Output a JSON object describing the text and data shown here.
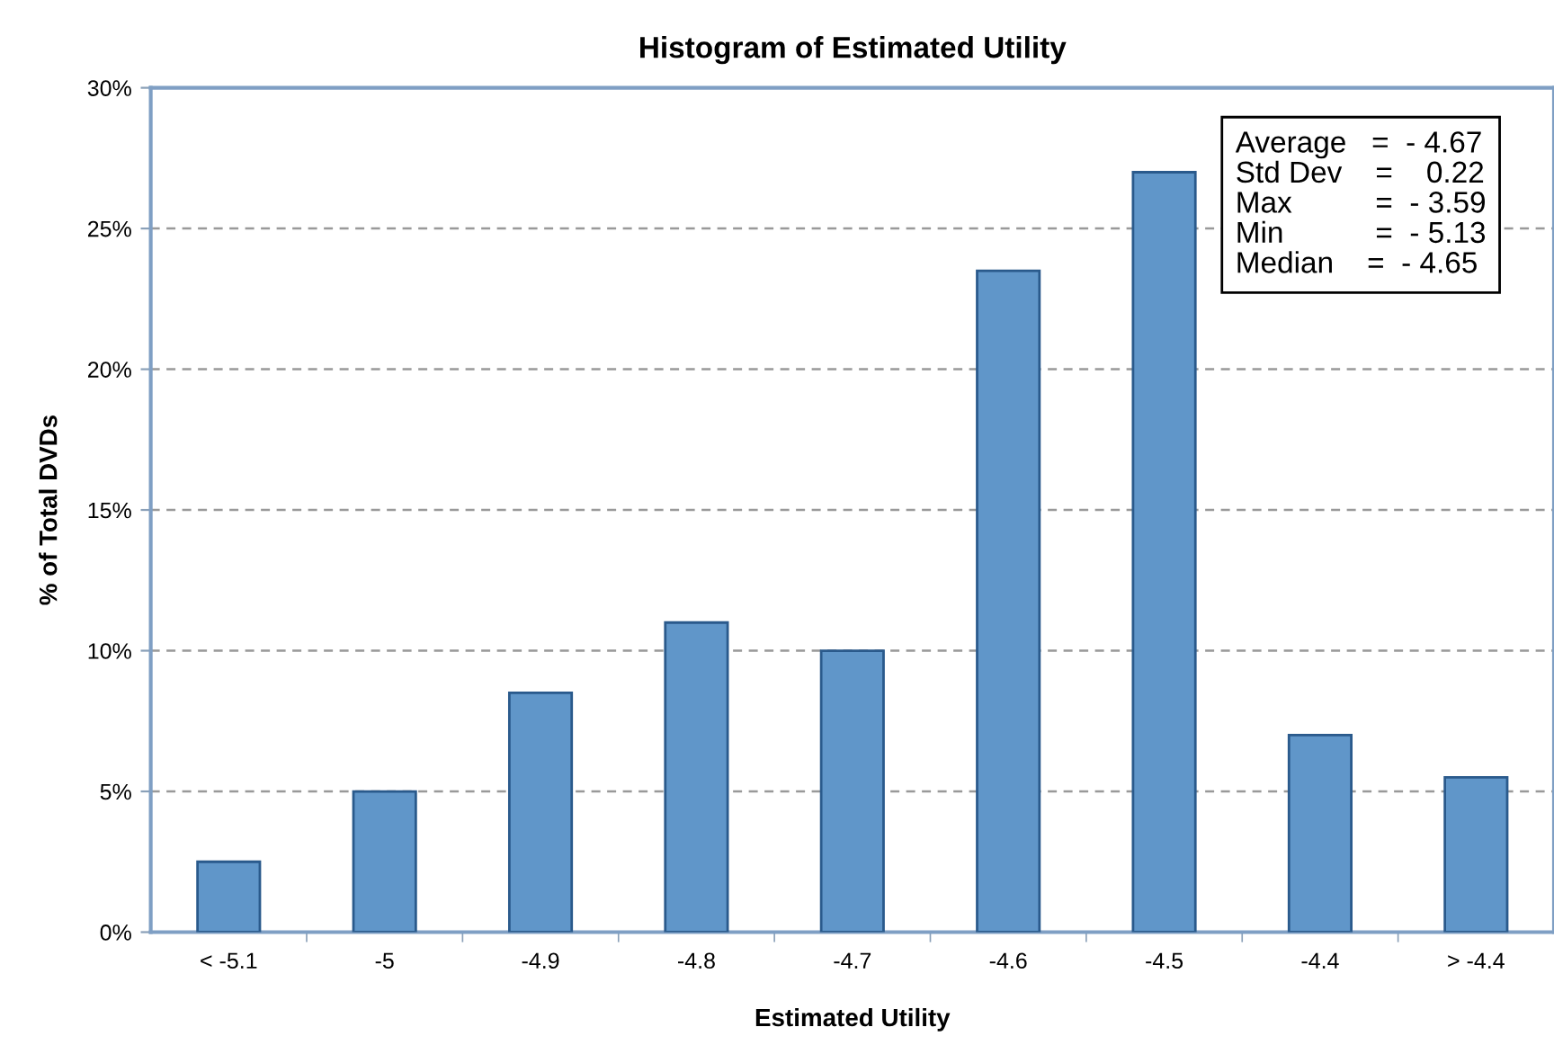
{
  "chart_data": {
    "type": "bar",
    "title": "Histogram of Estimated Utility",
    "xlabel": "Estimated Utility",
    "ylabel": "% of Total DVDs",
    "categories": [
      "< -5.1",
      "-5",
      "-4.9",
      "-4.8",
      "-4.7",
      "-4.6",
      "-4.5",
      "-4.4",
      "> -4.4"
    ],
    "values": [
      2.5,
      5,
      8.5,
      11,
      10,
      23.5,
      27,
      7,
      5.5
    ],
    "color": "#6096c9",
    "ylim": [
      0,
      30
    ],
    "yticks": [
      {
        "value": 0,
        "label": "0%"
      },
      {
        "value": 5,
        "label": "5%"
      },
      {
        "value": 10,
        "label": "10%"
      },
      {
        "value": 15,
        "label": "15%"
      },
      {
        "value": 20,
        "label": "20%"
      },
      {
        "value": 25,
        "label": "25%"
      },
      {
        "value": 30,
        "label": "30%"
      }
    ],
    "grid": "y",
    "annotations": [
      "Average   =  - 4.67",
      "Std Dev    =    0.22",
      "Max          =  - 3.59",
      "Min           =  - 5.13",
      "Median    =  - 4.65"
    ]
  }
}
